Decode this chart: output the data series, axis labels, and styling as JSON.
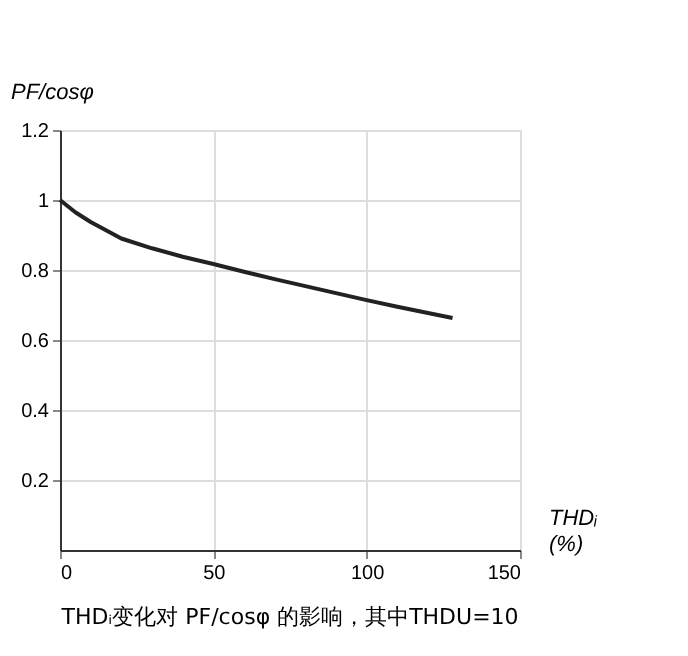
{
  "chart_data": {
    "type": "line",
    "title": "THDᵢ变化对 PF/cosφ 的影响，其中THDU=10",
    "xlabel": "THDᵢ (%)",
    "ylabel": "PF/cosφ",
    "x": [
      0,
      5,
      10,
      20,
      30,
      40,
      50,
      60,
      70,
      80,
      90,
      100,
      110,
      120,
      128
    ],
    "series": [
      {
        "color": "#222222",
        "values": [
          1.0,
          0.965,
          0.937,
          0.89,
          0.862,
          0.838,
          0.817,
          0.795,
          0.774,
          0.754,
          0.734,
          0.714,
          0.695,
          0.677,
          0.663
        ]
      }
    ],
    "xlim": [
      0,
      150
    ],
    "xticks": [
      0,
      50,
      100,
      150
    ],
    "ylim": [
      0,
      1.2
    ],
    "yticks": [
      0.2,
      0.4,
      0.6,
      0.8,
      1,
      1.2
    ],
    "grid": true,
    "marker": "none",
    "line_style": "solid",
    "legend": false
  }
}
